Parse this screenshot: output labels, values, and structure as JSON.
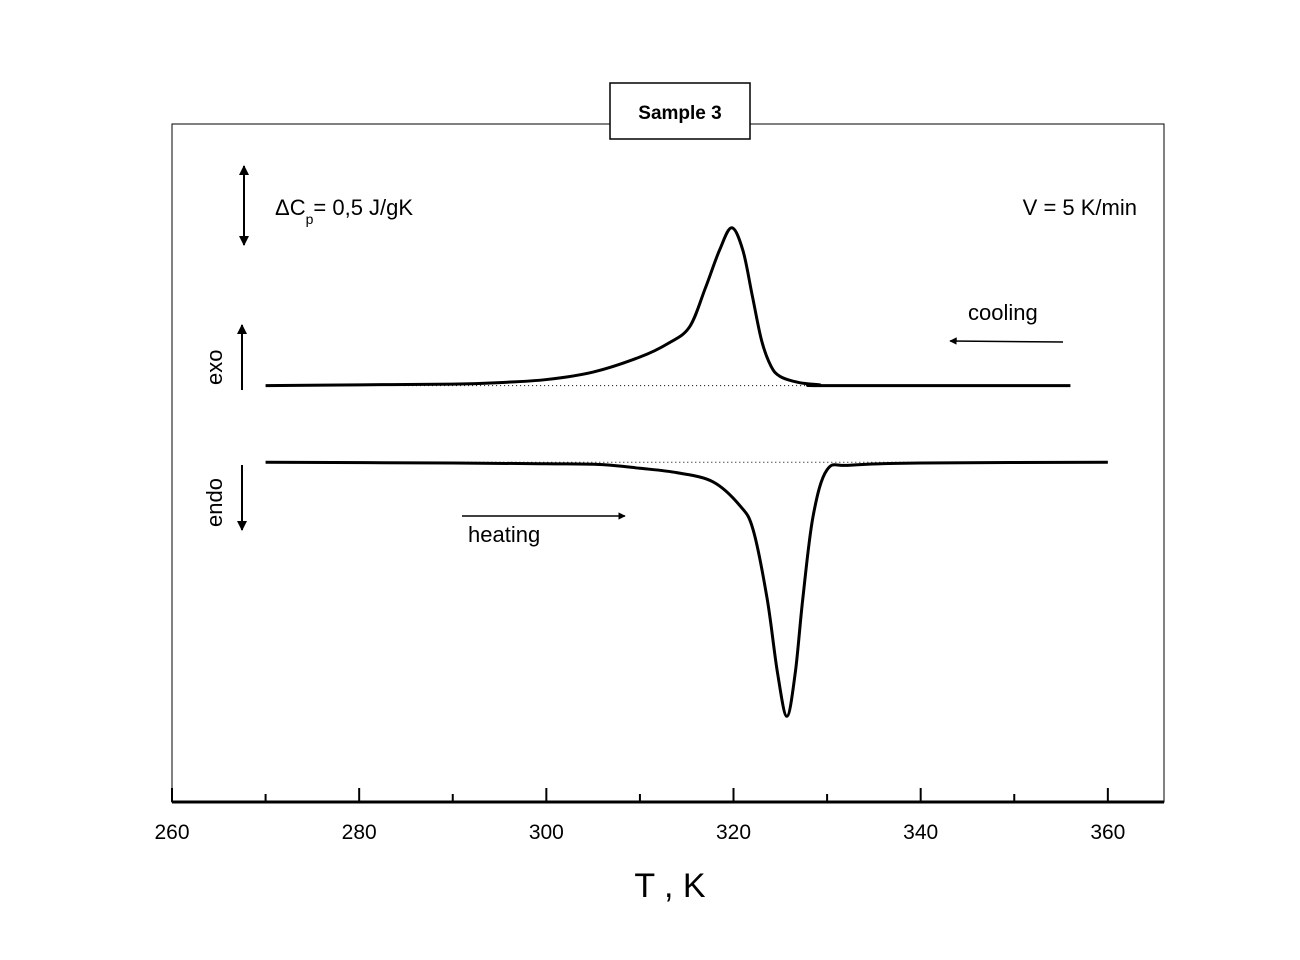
{
  "chart_data": {
    "type": "line",
    "title": "Sample 3",
    "xlabel": "T , K",
    "ylabel": "",
    "xlim": [
      260,
      366
    ],
    "ylim": [
      -2.26,
      2.25
    ],
    "xticks": [
      260,
      280,
      300,
      320,
      340,
      360
    ],
    "xminor_step": 10,
    "grid": false,
    "yaxis_labels": false,
    "colors": {
      "line": "#000000",
      "axis": "#000000",
      "background": "#ffffff"
    },
    "annotations": {
      "scale_bar": {
        "label_main": "ΔC",
        "label_sub": "p",
        "label_rest": "= 0,5 J/gK",
        "value": 0.5
      },
      "rate": "V = 5 K/min",
      "exo": "exo",
      "endo": "endo",
      "cooling": "cooling",
      "heating": "heating"
    },
    "series": [
      {
        "name": "cooling",
        "baseline_offset": 0.51,
        "x": [
          270,
          280,
          290,
          295,
          300,
          305,
          310,
          313,
          315.3,
          317,
          318.5,
          319.8,
          321,
          322,
          323,
          324,
          325,
          327,
          329.2,
          330,
          356
        ],
        "y": [
          0,
          0.005,
          0.01,
          0.02,
          0.04,
          0.09,
          0.19,
          0.28,
          0.39,
          0.65,
          0.9,
          1.05,
          0.9,
          0.6,
          0.3,
          0.13,
          0.06,
          0.02,
          0.005,
          0,
          0
        ]
      },
      {
        "name": "heating",
        "baseline_offset": 0,
        "x": [
          270,
          290,
          300,
          305.7,
          310,
          314,
          317.8,
          320.7,
          322.1,
          323.6,
          324.7,
          325.7,
          326.6,
          327.4,
          328.5,
          330,
          332.4,
          340,
          360
        ],
        "y": [
          0,
          -0.005,
          -0.01,
          -0.015,
          -0.04,
          -0.07,
          -0.13,
          -0.29,
          -0.45,
          -0.91,
          -1.4,
          -1.69,
          -1.4,
          -0.91,
          -0.36,
          -0.05,
          -0.02,
          -0.005,
          0
        ]
      }
    ]
  }
}
